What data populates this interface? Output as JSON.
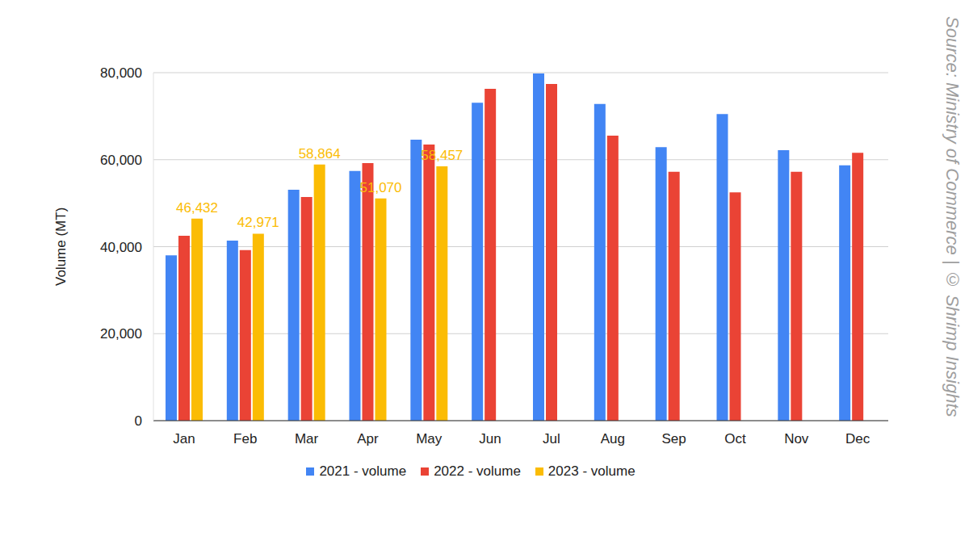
{
  "chart_data": {
    "type": "bar",
    "y_label": "Volume (MT)",
    "annotations": [
      "Source: Ministry of Commerce | © Shrimp Insights"
    ],
    "categories": [
      "Jan",
      "Feb",
      "Mar",
      "Apr",
      "May",
      "Jun",
      "Jul",
      "Aug",
      "Sep",
      "Oct",
      "Nov",
      "Dec"
    ],
    "series": [
      {
        "name": "2021 - volume",
        "color": "#4285f4",
        "values": [
          38000,
          41400,
          53100,
          57400,
          64600,
          73100,
          79800,
          72800,
          62900,
          70500,
          62200,
          58700
        ]
      },
      {
        "name": "2022 - volume",
        "color": "#ea4335",
        "values": [
          42500,
          39200,
          51400,
          59200,
          63500,
          76300,
          77400,
          65500,
          57200,
          52500,
          57200,
          61600
        ]
      },
      {
        "name": "2023 - volume",
        "color": "#fbbc04",
        "data_labels": true,
        "values": [
          46432,
          42971,
          58864,
          51070,
          58457,
          null,
          null,
          null,
          null,
          null,
          null,
          null
        ],
        "value_labels": [
          "46,432",
          "42,971",
          "58,864",
          "51,070",
          "58,457",
          null,
          null,
          null,
          null,
          null,
          null,
          null
        ]
      }
    ],
    "ylim": [
      0,
      80000
    ],
    "yticks": [
      0,
      {
        "value": 20000,
        "label": "20,000"
      },
      {
        "value": 40000,
        "label": "40,000"
      },
      {
        "value": 60000,
        "label": "60,000"
      },
      {
        "value": 80000,
        "label": "80,000"
      }
    ],
    "grid": true
  }
}
